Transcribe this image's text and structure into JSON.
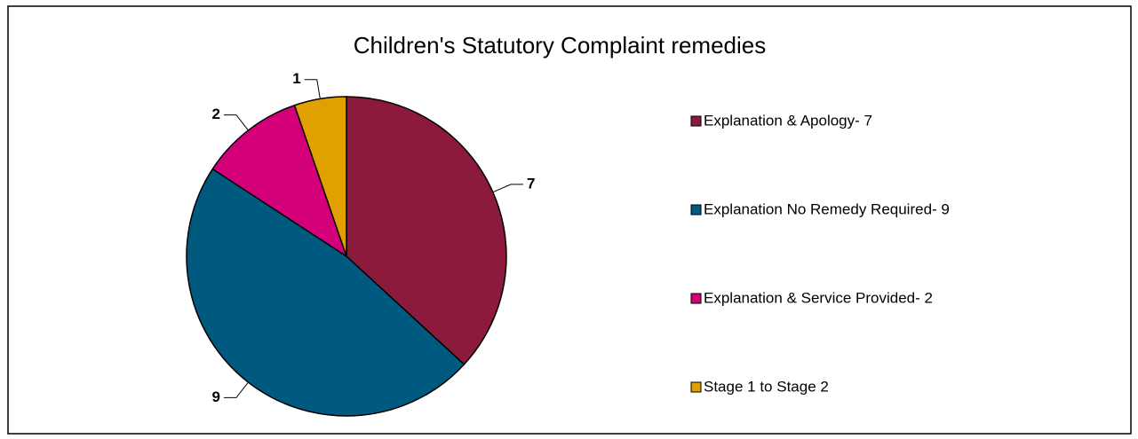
{
  "chart_data": {
    "type": "pie",
    "title": "Children's Statutory Complaint remedies",
    "categories": [
      "Explanation & Apology- 7",
      "Explanation No Remedy Required- 9",
      "Explanation & Service Provided- 2",
      "Stage 1 to Stage 2"
    ],
    "values": [
      7,
      9,
      2,
      1
    ],
    "colors": [
      "#8b1a3c",
      "#005a80",
      "#d4007a",
      "#e0a000"
    ],
    "legend": "right"
  }
}
